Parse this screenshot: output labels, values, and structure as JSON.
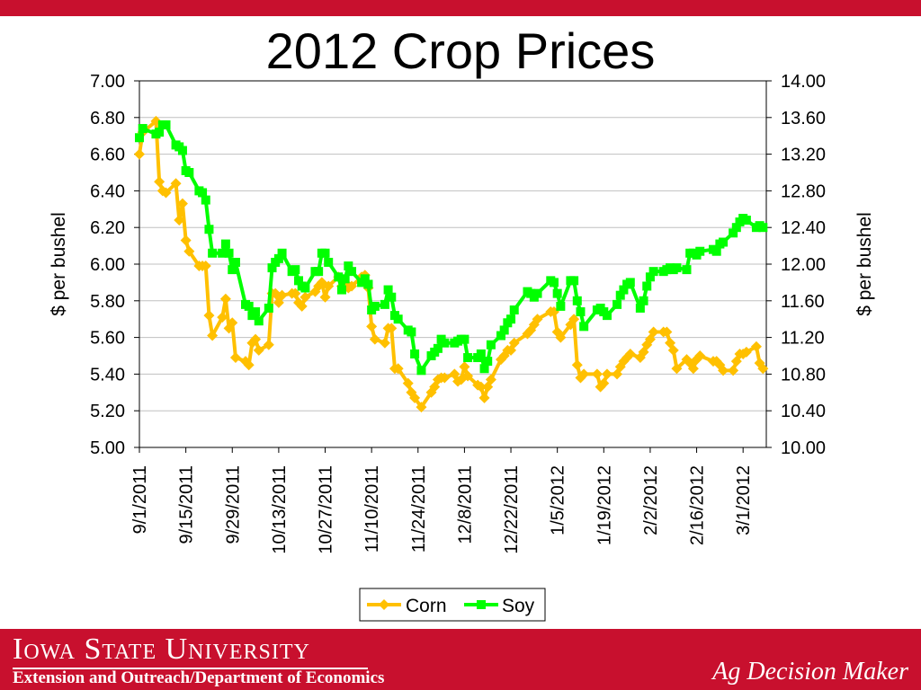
{
  "slide": {
    "title": "2012 Crop Prices",
    "footer_university": "Iowa State University",
    "footer_department": "Extension and Outreach/Department of Economics",
    "footer_brand": "Ag Decision Maker"
  },
  "colors": {
    "top_bar": "#c8102e",
    "footer": "#c8102e",
    "corn": "#ffc000",
    "soy": "#00ff00",
    "grid": "#c0c0c0"
  },
  "chart_data": {
    "type": "line",
    "title": "2012 Crop Prices",
    "y_left_label": "$ per bushel",
    "y_right_label": "$ per bushel",
    "y_left_lim": [
      5.0,
      7.0
    ],
    "y_right_lim": [
      10.0,
      14.0
    ],
    "y_left_ticks": [
      "5.00",
      "5.20",
      "5.40",
      "5.60",
      "5.80",
      "6.00",
      "6.20",
      "6.40",
      "6.60",
      "6.80",
      "7.00"
    ],
    "y_right_ticks": [
      "10.00",
      "10.40",
      "10.80",
      "11.20",
      "11.60",
      "12.00",
      "12.40",
      "12.80",
      "13.20",
      "13.60",
      "14.00"
    ],
    "x_tick_labels": [
      "9/1/2011",
      "9/15/2011",
      "9/29/2011",
      "10/13/2011",
      "10/27/2011",
      "11/10/2011",
      "11/24/2011",
      "12/8/2011",
      "12/22/2011",
      "1/5/2012",
      "1/19/2012",
      "2/2/2012",
      "2/16/2012",
      "3/1/2012"
    ],
    "x_start": "9/1/2011",
    "x_end": "3/8/2012",
    "grid": true,
    "legend_position": "bottom",
    "series": [
      {
        "name": "Corn",
        "axis": "left",
        "marker": "diamond",
        "points": [
          [
            "9/1/2011",
            6.6
          ],
          [
            "9/2/2011",
            6.72
          ],
          [
            "9/6/2011",
            6.78
          ],
          [
            "9/7/2011",
            6.45
          ],
          [
            "9/8/2011",
            6.4
          ],
          [
            "9/9/2011",
            6.39
          ],
          [
            "9/12/2011",
            6.44
          ],
          [
            "9/13/2011",
            6.24
          ],
          [
            "9/14/2011",
            6.33
          ],
          [
            "9/15/2011",
            6.13
          ],
          [
            "9/16/2011",
            6.07
          ],
          [
            "9/19/2011",
            5.99
          ],
          [
            "9/20/2011",
            5.99
          ],
          [
            "9/21/2011",
            5.99
          ],
          [
            "9/22/2011",
            5.72
          ],
          [
            "9/23/2011",
            5.61
          ],
          [
            "9/26/2011",
            5.71
          ],
          [
            "9/27/2011",
            5.81
          ],
          [
            "9/28/2011",
            5.65
          ],
          [
            "9/29/2011",
            5.68
          ],
          [
            "9/30/2011",
            5.49
          ],
          [
            "10/3/2011",
            5.47
          ],
          [
            "10/4/2011",
            5.45
          ],
          [
            "10/5/2011",
            5.57
          ],
          [
            "10/6/2011",
            5.59
          ],
          [
            "10/7/2011",
            5.53
          ],
          [
            "10/10/2011",
            5.56
          ],
          [
            "10/11/2011",
            5.84
          ],
          [
            "10/12/2011",
            5.84
          ],
          [
            "10/13/2011",
            5.79
          ],
          [
            "10/14/2011",
            5.83
          ],
          [
            "10/17/2011",
            5.84
          ],
          [
            "10/18/2011",
            5.84
          ],
          [
            "10/19/2011",
            5.79
          ],
          [
            "10/20/2011",
            5.77
          ],
          [
            "10/21/2011",
            5.82
          ],
          [
            "10/24/2011",
            5.85
          ],
          [
            "10/25/2011",
            5.88
          ],
          [
            "10/26/2011",
            5.9
          ],
          [
            "10/27/2011",
            5.82
          ],
          [
            "10/28/2011",
            5.88
          ],
          [
            "10/31/2011",
            5.93
          ],
          [
            "11/1/2011",
            5.88
          ],
          [
            "11/2/2011",
            5.9
          ],
          [
            "11/3/2011",
            5.87
          ],
          [
            "11/4/2011",
            5.88
          ],
          [
            "11/7/2011",
            5.93
          ],
          [
            "11/8/2011",
            5.94
          ],
          [
            "11/9/2011",
            5.87
          ],
          [
            "11/10/2011",
            5.66
          ],
          [
            "11/11/2011",
            5.59
          ],
          [
            "11/14/2011",
            5.57
          ],
          [
            "11/15/2011",
            5.65
          ],
          [
            "11/16/2011",
            5.65
          ],
          [
            "11/17/2011",
            5.43
          ],
          [
            "11/18/2011",
            5.43
          ],
          [
            "11/21/2011",
            5.35
          ],
          [
            "11/22/2011",
            5.3
          ],
          [
            "11/23/2011",
            5.27
          ],
          [
            "11/25/2011",
            5.22
          ],
          [
            "11/28/2011",
            5.3
          ],
          [
            "11/29/2011",
            5.33
          ],
          [
            "11/30/2011",
            5.37
          ],
          [
            "12/1/2011",
            5.38
          ],
          [
            "12/2/2011",
            5.38
          ],
          [
            "12/5/2011",
            5.4
          ],
          [
            "12/6/2011",
            5.36
          ],
          [
            "12/7/2011",
            5.37
          ],
          [
            "12/8/2011",
            5.44
          ],
          [
            "12/9/2011",
            5.39
          ],
          [
            "12/12/2011",
            5.34
          ],
          [
            "12/13/2011",
            5.33
          ],
          [
            "12/14/2011",
            5.27
          ],
          [
            "12/15/2011",
            5.33
          ],
          [
            "12/16/2011",
            5.37
          ],
          [
            "12/19/2011",
            5.48
          ],
          [
            "12/20/2011",
            5.5
          ],
          [
            "12/21/2011",
            5.53
          ],
          [
            "12/22/2011",
            5.53
          ],
          [
            "12/23/2011",
            5.57
          ],
          [
            "12/27/2011",
            5.62
          ],
          [
            "12/28/2011",
            5.64
          ],
          [
            "12/29/2011",
            5.67
          ],
          [
            "12/30/2011",
            5.7
          ],
          [
            "1/3/2012",
            5.74
          ],
          [
            "1/4/2012",
            5.74
          ],
          [
            "1/5/2012",
            5.63
          ],
          [
            "1/6/2012",
            5.6
          ],
          [
            "1/9/2012",
            5.67
          ],
          [
            "1/10/2012",
            5.7
          ],
          [
            "1/11/2012",
            5.45
          ],
          [
            "1/12/2012",
            5.38
          ],
          [
            "1/13/2012",
            5.4
          ],
          [
            "1/17/2012",
            5.4
          ],
          [
            "1/18/2012",
            5.33
          ],
          [
            "1/19/2012",
            5.35
          ],
          [
            "1/20/2012",
            5.4
          ],
          [
            "1/23/2012",
            5.4
          ],
          [
            "1/24/2012",
            5.44
          ],
          [
            "1/25/2012",
            5.47
          ],
          [
            "1/26/2012",
            5.49
          ],
          [
            "1/27/2012",
            5.51
          ],
          [
            "1/30/2012",
            5.49
          ],
          [
            "1/31/2012",
            5.52
          ],
          [
            "2/1/2012",
            5.56
          ],
          [
            "2/2/2012",
            5.59
          ],
          [
            "2/3/2012",
            5.63
          ],
          [
            "2/6/2012",
            5.63
          ],
          [
            "2/7/2012",
            5.63
          ],
          [
            "2/8/2012",
            5.57
          ],
          [
            "2/9/2012",
            5.53
          ],
          [
            "2/10/2012",
            5.43
          ],
          [
            "2/13/2012",
            5.48
          ],
          [
            "2/14/2012",
            5.46
          ],
          [
            "2/15/2012",
            5.43
          ],
          [
            "2/16/2012",
            5.48
          ],
          [
            "2/17/2012",
            5.5
          ],
          [
            "2/21/2012",
            5.47
          ],
          [
            "2/22/2012",
            5.47
          ],
          [
            "2/23/2012",
            5.45
          ],
          [
            "2/24/2012",
            5.42
          ],
          [
            "2/27/2012",
            5.42
          ],
          [
            "2/28/2012",
            5.47
          ],
          [
            "2/29/2012",
            5.51
          ],
          [
            "3/1/2012",
            5.51
          ],
          [
            "3/2/2012",
            5.52
          ],
          [
            "3/5/2012",
            5.55
          ],
          [
            "3/6/2012",
            5.46
          ],
          [
            "3/7/2012",
            5.43
          ]
        ]
      },
      {
        "name": "Soy",
        "axis": "right",
        "marker": "square",
        "points": [
          [
            "9/1/2011",
            13.38
          ],
          [
            "9/2/2011",
            13.48
          ],
          [
            "9/6/2011",
            13.42
          ],
          [
            "9/7/2011",
            13.44
          ],
          [
            "9/8/2011",
            13.52
          ],
          [
            "9/9/2011",
            13.52
          ],
          [
            "9/12/2011",
            13.3
          ],
          [
            "9/13/2011",
            13.28
          ],
          [
            "9/14/2011",
            13.24
          ],
          [
            "9/15/2011",
            13.02
          ],
          [
            "9/16/2011",
            13.0
          ],
          [
            "9/19/2011",
            12.8
          ],
          [
            "9/20/2011",
            12.78
          ],
          [
            "9/21/2011",
            12.7
          ],
          [
            "9/22/2011",
            12.38
          ],
          [
            "9/23/2011",
            12.12
          ],
          [
            "9/26/2011",
            12.12
          ],
          [
            "9/27/2011",
            12.22
          ],
          [
            "9/28/2011",
            12.12
          ],
          [
            "9/29/2011",
            11.94
          ],
          [
            "9/30/2011",
            12.02
          ],
          [
            "10/3/2011",
            11.56
          ],
          [
            "10/4/2011",
            11.54
          ],
          [
            "10/5/2011",
            11.44
          ],
          [
            "10/6/2011",
            11.48
          ],
          [
            "10/7/2011",
            11.38
          ],
          [
            "10/10/2011",
            11.52
          ],
          [
            "10/11/2011",
            11.96
          ],
          [
            "10/12/2011",
            12.02
          ],
          [
            "10/13/2011",
            12.06
          ],
          [
            "10/14/2011",
            12.12
          ],
          [
            "10/17/2011",
            11.92
          ],
          [
            "10/18/2011",
            11.94
          ],
          [
            "10/19/2011",
            11.82
          ],
          [
            "10/20/2011",
            11.76
          ],
          [
            "10/21/2011",
            11.74
          ],
          [
            "10/24/2011",
            11.92
          ],
          [
            "10/25/2011",
            11.92
          ],
          [
            "10/26/2011",
            12.12
          ],
          [
            "10/27/2011",
            12.12
          ],
          [
            "10/28/2011",
            12.02
          ],
          [
            "10/31/2011",
            11.86
          ],
          [
            "11/1/2011",
            11.72
          ],
          [
            "11/2/2011",
            11.84
          ],
          [
            "11/3/2011",
            11.98
          ],
          [
            "11/4/2011",
            11.92
          ],
          [
            "11/7/2011",
            11.8
          ],
          [
            "11/8/2011",
            11.84
          ],
          [
            "11/9/2011",
            11.78
          ],
          [
            "11/10/2011",
            11.5
          ],
          [
            "11/11/2011",
            11.54
          ],
          [
            "11/14/2011",
            11.56
          ],
          [
            "11/15/2011",
            11.72
          ],
          [
            "11/16/2011",
            11.64
          ],
          [
            "11/17/2011",
            11.44
          ],
          [
            "11/18/2011",
            11.4
          ],
          [
            "11/21/2011",
            11.28
          ],
          [
            "11/22/2011",
            11.26
          ],
          [
            "11/23/2011",
            11.02
          ],
          [
            "11/25/2011",
            10.84
          ],
          [
            "11/28/2011",
            11.0
          ],
          [
            "11/29/2011",
            11.04
          ],
          [
            "11/30/2011",
            11.08
          ],
          [
            "12/1/2011",
            11.18
          ],
          [
            "12/2/2011",
            11.14
          ],
          [
            "12/5/2011",
            11.14
          ],
          [
            "12/6/2011",
            11.16
          ],
          [
            "12/7/2011",
            11.18
          ],
          [
            "12/8/2011",
            11.18
          ],
          [
            "12/9/2011",
            10.98
          ],
          [
            "12/12/2011",
            10.98
          ],
          [
            "12/13/2011",
            11.02
          ],
          [
            "12/14/2011",
            10.86
          ],
          [
            "12/15/2011",
            10.94
          ],
          [
            "12/16/2011",
            11.12
          ],
          [
            "12/19/2011",
            11.22
          ],
          [
            "12/20/2011",
            11.28
          ],
          [
            "12/21/2011",
            11.36
          ],
          [
            "12/22/2011",
            11.4
          ],
          [
            "12/23/2011",
            11.5
          ],
          [
            "12/27/2011",
            11.7
          ],
          [
            "12/28/2011",
            11.68
          ],
          [
            "12/29/2011",
            11.64
          ],
          [
            "12/30/2011",
            11.68
          ],
          [
            "1/3/2012",
            11.82
          ],
          [
            "1/4/2012",
            11.8
          ],
          [
            "1/5/2012",
            11.68
          ],
          [
            "1/6/2012",
            11.54
          ],
          [
            "1/9/2012",
            11.82
          ],
          [
            "1/10/2012",
            11.82
          ],
          [
            "1/11/2012",
            11.6
          ],
          [
            "1/12/2012",
            11.48
          ],
          [
            "1/13/2012",
            11.32
          ],
          [
            "1/17/2012",
            11.5
          ],
          [
            "1/18/2012",
            11.52
          ],
          [
            "1/19/2012",
            11.48
          ],
          [
            "1/20/2012",
            11.44
          ],
          [
            "1/23/2012",
            11.56
          ],
          [
            "1/24/2012",
            11.66
          ],
          [
            "1/25/2012",
            11.72
          ],
          [
            "1/26/2012",
            11.78
          ],
          [
            "1/27/2012",
            11.8
          ],
          [
            "1/30/2012",
            11.52
          ],
          [
            "1/31/2012",
            11.6
          ],
          [
            "2/1/2012",
            11.76
          ],
          [
            "2/2/2012",
            11.86
          ],
          [
            "2/3/2012",
            11.92
          ],
          [
            "2/6/2012",
            11.92
          ],
          [
            "2/7/2012",
            11.94
          ],
          [
            "2/8/2012",
            11.96
          ],
          [
            "2/9/2012",
            11.94
          ],
          [
            "2/10/2012",
            11.96
          ],
          [
            "2/13/2012",
            11.94
          ],
          [
            "2/14/2012",
            12.12
          ],
          [
            "2/15/2012",
            12.12
          ],
          [
            "2/16/2012",
            12.1
          ],
          [
            "2/17/2012",
            12.14
          ],
          [
            "2/21/2012",
            12.16
          ],
          [
            "2/22/2012",
            12.14
          ],
          [
            "2/23/2012",
            12.22
          ],
          [
            "2/24/2012",
            12.24
          ],
          [
            "2/27/2012",
            12.34
          ],
          [
            "2/28/2012",
            12.4
          ],
          [
            "2/29/2012",
            12.46
          ],
          [
            "3/1/2012",
            12.5
          ],
          [
            "3/2/2012",
            12.48
          ],
          [
            "3/5/2012",
            12.4
          ],
          [
            "3/6/2012",
            12.42
          ],
          [
            "3/7/2012",
            12.4
          ]
        ]
      }
    ]
  }
}
